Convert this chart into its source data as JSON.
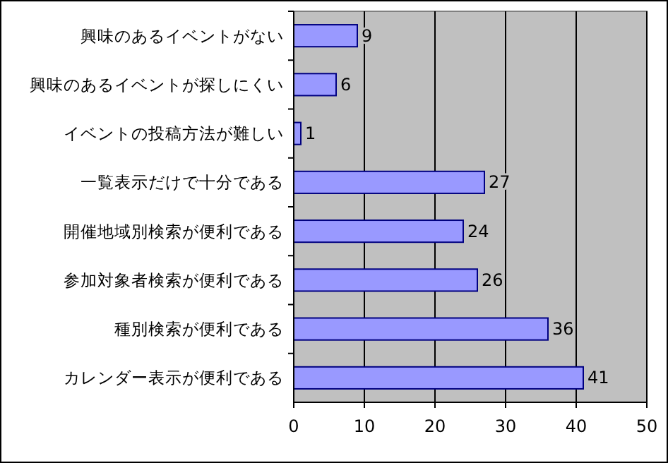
{
  "chart_data": {
    "type": "bar",
    "orientation": "horizontal",
    "categories": [
      "興味のあるイベントがない",
      "興味のあるイベントが探しにくい",
      "イベントの投稿方法が難しい",
      "一覧表示だけで十分である",
      "開催地域別検索が便利である",
      "参加対象者検索が便利である",
      "種別検索が便利である",
      "カレンダー表示が便利である"
    ],
    "values": [
      9,
      6,
      1,
      27,
      24,
      26,
      36,
      41
    ],
    "color": "#9999ff",
    "xlim": [
      0,
      50
    ],
    "xticks": [
      0,
      10,
      20,
      30,
      40,
      50
    ],
    "grid": "x",
    "data_labels": true
  }
}
